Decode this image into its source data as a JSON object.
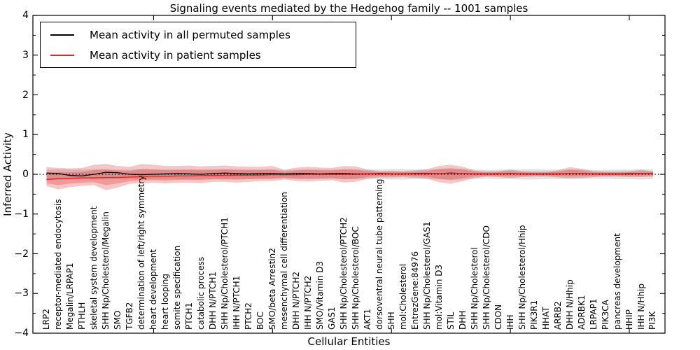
{
  "title": "Signaling events mediated by the Hedgehog family -- 1001 samples",
  "legend": {
    "items": [
      {
        "label": "Mean activity in all permuted samples",
        "color": "#000000"
      },
      {
        "label": "Mean activity in patient samples",
        "color": "#ee2222"
      }
    ]
  },
  "colors": {
    "permuted_line": "#000000",
    "patient_line": "#ee2222",
    "patient_band_fill": "rgba(221,45,45,0.28)",
    "permuted_band_fill": "rgba(90,90,90,0.18)",
    "zero_line": "#000000",
    "axis": "#000000"
  },
  "chart_data": {
    "type": "line",
    "title": "Signaling events mediated by the Hedgehog family -- 1001 samples",
    "xlabel": "Cellular Entities",
    "ylabel": "Inferred Activity",
    "ylim": [
      -4,
      4
    ],
    "yticks": [
      4,
      3,
      2,
      1,
      0,
      -1,
      -2,
      -3,
      -4
    ],
    "y_minor_step": 0.5,
    "x_major_tick_categories_1indexed": [
      10,
      20,
      30,
      40,
      50
    ],
    "grid": false,
    "legend_position": "upper left",
    "zero_reference_line": 0,
    "categories": [
      "LRP2",
      "receptor-mediated endocytosis",
      "Megalin/LRPAP1",
      "PTHLH",
      "skeletal system development",
      "SHH Np/Cholesterol/Megalin",
      "SMO",
      "TGFB2",
      "determination of left/right symmetry",
      "heart development",
      "heart looping",
      "somite specification",
      "PTCH1",
      "catabolic process",
      "DHH N/PTCH1",
      "SHH Np/Cholesterol/PTCH1",
      "IHH N/PTCH1",
      "PTCH2",
      "BOC",
      "SMO/beta Arrestin2",
      "mesenchymal cell differentiation",
      "DHH N/PTCH2",
      "IHH N/PTCH2",
      "SMO/Vitamin D3",
      "GAS1",
      "SHH Np/Cholesterol/PTCH2",
      "SHH Np/Cholesterol/BOC",
      "AKT1",
      "dorsoventral neural tube patterning",
      "SHH",
      "mol:Cholesterol",
      "EntrezGene:84976",
      "SHH Np/Cholesterol/GAS1",
      "mol:Vitamin D3",
      "STIL",
      "DHH",
      "SHH Np/Cholesterol",
      "SHH Np/Cholesterol/CDO",
      "CDON",
      "IHH",
      "SHH Np/Cholesterol/Hhip",
      "PIK3R1",
      "HHAT",
      "ARRB2",
      "DHH N/Hhip",
      "ADRBK1",
      "LRPAP1",
      "PIK3CA",
      "pancreas development",
      "HHIP",
      "IHH N/Hhip",
      "PI3K"
    ],
    "series": [
      {
        "name": "Mean activity in all permuted samples",
        "kind": "line",
        "values": [
          0.03,
          0.02,
          -0.03,
          -0.04,
          0.0,
          0.05,
          0.04,
          0.0,
          -0.01,
          0.0,
          0.01,
          0.02,
          0.01,
          0.0,
          0.02,
          0.03,
          0.02,
          0.01,
          0.02,
          0.02,
          0.01,
          0.02,
          0.02,
          0.01,
          0.02,
          0.02,
          0.01,
          0.01,
          0.02,
          0.01,
          0.01,
          0.02,
          0.02,
          0.02,
          0.03,
          0.02,
          0.01,
          0.01,
          0.01,
          0.02,
          0.01,
          0.01,
          0.01,
          0.01,
          0.02,
          0.02,
          0.01,
          0.01,
          0.01,
          0.01,
          0.02,
          0.02
        ]
      },
      {
        "name": "Mean activity in patient samples",
        "kind": "line",
        "values": [
          -0.13,
          -0.11,
          -0.1,
          -0.09,
          -0.09,
          -0.08,
          -0.08,
          -0.07,
          -0.06,
          -0.05,
          -0.05,
          -0.04,
          -0.04,
          -0.03,
          -0.03,
          -0.03,
          -0.02,
          -0.02,
          -0.02,
          -0.01,
          -0.01,
          -0.01,
          0.0,
          0.0,
          0.0,
          0.0,
          0.0,
          0.01,
          0.01,
          0.01,
          0.01,
          0.01,
          0.01,
          0.02,
          0.02,
          0.02,
          0.01,
          0.01,
          0.01,
          0.02,
          0.01,
          0.01,
          0.01,
          0.01,
          0.02,
          0.02,
          0.01,
          0.01,
          0.01,
          0.02,
          0.02,
          0.02
        ]
      },
      {
        "name": "permuted samples std band",
        "kind": "band",
        "upper": [
          0.12,
          0.13,
          0.12,
          0.12,
          0.13,
          0.12,
          0.12,
          0.12,
          0.13,
          0.12,
          0.12,
          0.12,
          0.12,
          0.12,
          0.12,
          0.13,
          0.12,
          0.12,
          0.12,
          0.12,
          0.11,
          0.12,
          0.12,
          0.12,
          0.12,
          0.12,
          0.12,
          0.12,
          0.12,
          0.13,
          0.13,
          0.12,
          0.12,
          0.13,
          0.14,
          0.13,
          0.12,
          0.11,
          0.12,
          0.12,
          0.13,
          0.13,
          0.12,
          0.12,
          0.12,
          0.12,
          0.11,
          0.11,
          0.12,
          0.12,
          0.13,
          0.12
        ],
        "lower": [
          -0.13,
          -0.14,
          -0.13,
          -0.12,
          -0.13,
          -0.13,
          -0.12,
          -0.12,
          -0.13,
          -0.12,
          -0.12,
          -0.12,
          -0.12,
          -0.12,
          -0.12,
          -0.13,
          -0.12,
          -0.12,
          -0.12,
          -0.12,
          -0.11,
          -0.12,
          -0.12,
          -0.12,
          -0.12,
          -0.12,
          -0.12,
          -0.12,
          -0.12,
          -0.13,
          -0.13,
          -0.12,
          -0.12,
          -0.13,
          -0.14,
          -0.13,
          -0.12,
          -0.11,
          -0.12,
          -0.12,
          -0.13,
          -0.13,
          -0.12,
          -0.12,
          -0.12,
          -0.12,
          -0.11,
          -0.11,
          -0.12,
          -0.12,
          -0.13,
          -0.12
        ]
      },
      {
        "name": "patient samples outer band",
        "kind": "band",
        "upper": [
          0.18,
          0.16,
          0.15,
          0.16,
          0.24,
          0.26,
          0.21,
          0.19,
          0.26,
          0.24,
          0.21,
          0.21,
          0.22,
          0.2,
          0.21,
          0.22,
          0.2,
          0.19,
          0.19,
          0.21,
          0.11,
          0.17,
          0.19,
          0.17,
          0.16,
          0.21,
          0.2,
          0.12,
          0.08,
          0.09,
          0.08,
          0.1,
          0.13,
          0.21,
          0.24,
          0.19,
          0.1,
          0.07,
          0.08,
          0.12,
          0.08,
          0.07,
          0.07,
          0.1,
          0.18,
          0.14,
          0.08,
          0.07,
          0.07,
          0.08,
          0.11,
          0.08
        ],
        "lower": [
          -0.3,
          -0.38,
          -0.32,
          -0.29,
          -0.27,
          -0.4,
          -0.33,
          -0.24,
          -0.22,
          -0.21,
          -0.23,
          -0.21,
          -0.21,
          -0.22,
          -0.19,
          -0.19,
          -0.21,
          -0.19,
          -0.17,
          -0.17,
          -0.13,
          -0.17,
          -0.18,
          -0.16,
          -0.15,
          -0.21,
          -0.19,
          -0.11,
          -0.08,
          -0.08,
          -0.07,
          -0.09,
          -0.11,
          -0.2,
          -0.24,
          -0.17,
          -0.09,
          -0.06,
          -0.07,
          -0.09,
          -0.07,
          -0.06,
          -0.06,
          -0.08,
          -0.1,
          -0.09,
          -0.07,
          -0.06,
          -0.06,
          -0.07,
          -0.07,
          -0.06
        ],
        "inner_band_fraction": 0.6
      }
    ]
  }
}
